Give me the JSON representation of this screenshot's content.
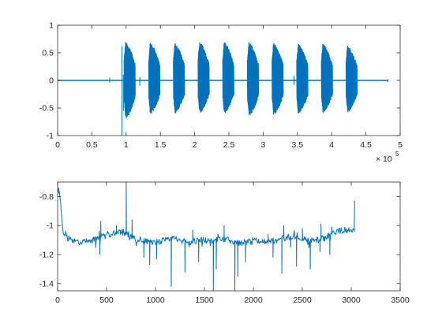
{
  "chart_data": [
    {
      "type": "line",
      "title": "",
      "xlabel": "",
      "ylabel": "",
      "color": "#0072BD",
      "xlim": [
        0,
        500000
      ],
      "ylim": [
        -1,
        1
      ],
      "x_ticks": [
        0,
        50000,
        100000,
        150000,
        200000,
        250000,
        300000,
        350000,
        400000,
        450000,
        500000
      ],
      "x_tick_labels": [
        "0",
        "0.5",
        "1",
        "1.5",
        "2",
        "2.5",
        "3",
        "3.5",
        "4",
        "4.5",
        "5"
      ],
      "x_exponent_label": {
        "base": "× 10",
        "power": "5"
      },
      "y_ticks": [
        -1,
        -0.5,
        0,
        0.5,
        1
      ],
      "y_tick_labels": [
        "-1",
        "-0.5",
        "0",
        "0.5",
        "1"
      ],
      "signal_extent": [
        0,
        483000
      ],
      "noise_floor": 0.01,
      "spikes": [
        {
          "x": 76000,
          "low": -0.04,
          "high": 0.05
        },
        {
          "x": 94000,
          "low": -1.0,
          "high": 0.62
        },
        {
          "x": 96000,
          "low": -0.55,
          "high": 0.1
        },
        {
          "x": 120000,
          "low": -0.1,
          "high": 0.06
        },
        {
          "x": 245000,
          "low": -0.08,
          "high": 0.06
        },
        {
          "x": 345000,
          "low": -0.08,
          "high": 0.08
        },
        {
          "x": 395000,
          "low": -0.1,
          "high": 0.1
        },
        {
          "x": 482000,
          "low": -0.03,
          "high": 0.02
        }
      ],
      "bursts": [
        {
          "start": 97000,
          "end": 113000,
          "low": -0.7,
          "high": 0.7
        },
        {
          "start": 133000,
          "end": 149000,
          "low": -0.62,
          "high": 0.68
        },
        {
          "start": 169000,
          "end": 185000,
          "low": -0.6,
          "high": 0.68
        },
        {
          "start": 205000,
          "end": 221000,
          "low": -0.6,
          "high": 0.7
        },
        {
          "start": 241000,
          "end": 257000,
          "low": -0.6,
          "high": 0.7
        },
        {
          "start": 277000,
          "end": 293000,
          "low": -0.65,
          "high": 0.7
        },
        {
          "start": 313000,
          "end": 329000,
          "low": -0.63,
          "high": 0.68
        },
        {
          "start": 349000,
          "end": 365000,
          "low": -0.62,
          "high": 0.67
        },
        {
          "start": 385000,
          "end": 401000,
          "low": -0.6,
          "high": 0.67
        },
        {
          "start": 421000,
          "end": 437000,
          "low": -0.58,
          "high": 0.63
        }
      ]
    },
    {
      "type": "line",
      "title": "",
      "xlabel": "",
      "ylabel": "",
      "color": "#0072BD",
      "xlim": [
        0,
        3500
      ],
      "ylim": [
        -1.45,
        -0.7
      ],
      "x_ticks": [
        0,
        500,
        1000,
        1500,
        2000,
        2500,
        3000,
        3500
      ],
      "x_tick_labels": [
        "0",
        "500",
        "1000",
        "1500",
        "2000",
        "2500",
        "3000",
        "3500"
      ],
      "y_ticks": [
        -1.4,
        -1.2,
        -1,
        -0.8
      ],
      "y_tick_labels": [
        "-1.4",
        "-1.2",
        "-1",
        "-0.8"
      ],
      "x_extent": [
        0,
        3030
      ],
      "baseline": [
        [
          0,
          -0.75
        ],
        [
          25,
          -0.8
        ],
        [
          50,
          -1.02
        ],
        [
          80,
          -1.08
        ],
        [
          150,
          -1.1
        ],
        [
          250,
          -1.12
        ],
        [
          350,
          -1.1
        ],
        [
          450,
          -1.08
        ],
        [
          550,
          -1.06
        ],
        [
          650,
          -1.04
        ],
        [
          750,
          -1.08
        ],
        [
          850,
          -1.1
        ],
        [
          950,
          -1.12
        ],
        [
          1050,
          -1.11
        ],
        [
          1150,
          -1.09
        ],
        [
          1250,
          -1.1
        ],
        [
          1350,
          -1.12
        ],
        [
          1450,
          -1.1
        ],
        [
          1550,
          -1.11
        ],
        [
          1650,
          -1.09
        ],
        [
          1750,
          -1.1
        ],
        [
          1850,
          -1.12
        ],
        [
          1950,
          -1.11
        ],
        [
          2050,
          -1.1
        ],
        [
          2150,
          -1.11
        ],
        [
          2250,
          -1.1
        ],
        [
          2350,
          -1.08
        ],
        [
          2450,
          -1.07
        ],
        [
          2550,
          -1.11
        ],
        [
          2650,
          -1.1
        ],
        [
          2750,
          -1.08
        ],
        [
          2850,
          -1.04
        ],
        [
          2950,
          -1.03
        ],
        [
          3030,
          -1.02
        ]
      ],
      "excursions": [
        {
          "x": 10,
          "y": -0.74
        },
        {
          "x": 430,
          "y": -1.2
        },
        {
          "x": 440,
          "y": -0.97
        },
        {
          "x": 600,
          "y": -1.0
        },
        {
          "x": 640,
          "y": -1.06
        },
        {
          "x": 700,
          "y": -0.7
        },
        {
          "x": 760,
          "y": -0.96
        },
        {
          "x": 880,
          "y": -1.22
        },
        {
          "x": 940,
          "y": -1.27
        },
        {
          "x": 1010,
          "y": -1.23
        },
        {
          "x": 1160,
          "y": -1.42
        },
        {
          "x": 1300,
          "y": -1.32
        },
        {
          "x": 1380,
          "y": -1.03
        },
        {
          "x": 1440,
          "y": -1.25
        },
        {
          "x": 1590,
          "y": -1.45
        },
        {
          "x": 1620,
          "y": -1.3
        },
        {
          "x": 1700,
          "y": -1.0
        },
        {
          "x": 1810,
          "y": -1.45
        },
        {
          "x": 1840,
          "y": -1.35
        },
        {
          "x": 1920,
          "y": -1.25
        },
        {
          "x": 2150,
          "y": -1.06
        },
        {
          "x": 2200,
          "y": -1.22
        },
        {
          "x": 2290,
          "y": -1.33
        },
        {
          "x": 2310,
          "y": -1.0
        },
        {
          "x": 2380,
          "y": -1.15
        },
        {
          "x": 2440,
          "y": -1.28
        },
        {
          "x": 2500,
          "y": -1.02
        },
        {
          "x": 2580,
          "y": -1.3
        },
        {
          "x": 2680,
          "y": -1.18
        },
        {
          "x": 2690,
          "y": -0.99
        },
        {
          "x": 2780,
          "y": -1.2
        },
        {
          "x": 2800,
          "y": -1.01
        },
        {
          "x": 3030,
          "y": -1.04
        },
        {
          "x": 3035,
          "y": -0.83
        }
      ]
    }
  ]
}
